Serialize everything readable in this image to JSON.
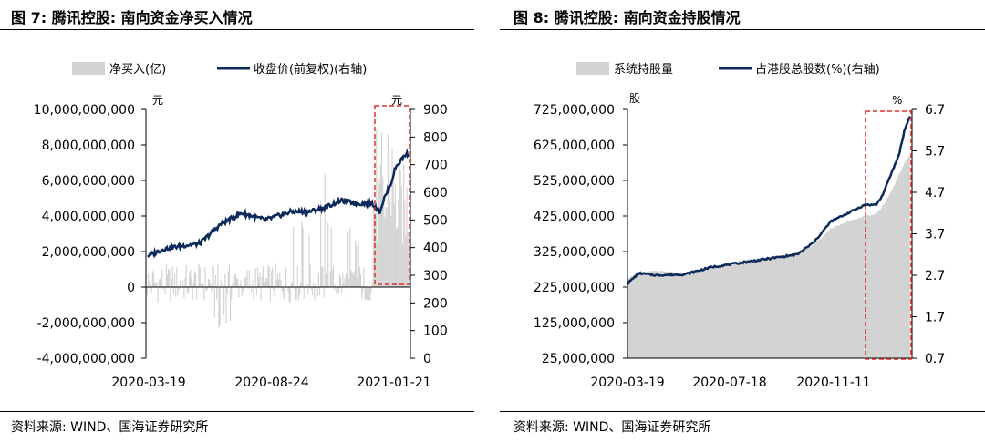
{
  "figures": [
    {
      "title_prefix": "图 ",
      "title_num": "7",
      "title_sep": ": ",
      "title_text": "腾讯控股: 南向资金净买入情况",
      "source": "资料来源: WIND、国海证券研究所"
    },
    {
      "title_prefix": "图 ",
      "title_num": "8",
      "title_sep": ": ",
      "title_text": "腾讯控股: 南向资金持股情况",
      "source": "资料来源: WIND、国海证券研究所"
    }
  ],
  "chart_data": [
    {
      "type": "bar+line",
      "title": "腾讯控股: 南向资金净买入情况",
      "legend": [
        "净买入(亿)",
        "收盘价(前复权)(右轴)"
      ],
      "left_unit": "元",
      "right_unit": "元",
      "x_tick_labels": [
        "2020-03-19",
        "2020-08-24",
        "2021-01-21"
      ],
      "ylim_left": [
        -4000000000,
        10000000000
      ],
      "ylim_right": [
        0,
        900
      ],
      "y_left_ticks": [
        "10,000,000,000",
        "8,000,000,000",
        "6,000,000,000",
        "4,000,000,000",
        "2,000,000,000",
        "0",
        "-2,000,000,000",
        "-4,000,000,000"
      ],
      "y_right_ticks": [
        "900",
        "800",
        "700",
        "600",
        "500",
        "400",
        "300",
        "200",
        "100",
        "0"
      ],
      "price_keypoints": [
        [
          0,
          370
        ],
        [
          0.06,
          395
        ],
        [
          0.12,
          405
        ],
        [
          0.2,
          415
        ],
        [
          0.28,
          485
        ],
        [
          0.36,
          525
        ],
        [
          0.45,
          500
        ],
        [
          0.55,
          530
        ],
        [
          0.62,
          530
        ],
        [
          0.68,
          545
        ],
        [
          0.74,
          570
        ],
        [
          0.8,
          560
        ],
        [
          0.86,
          560
        ],
        [
          0.89,
          530
        ],
        [
          0.905,
          575
        ],
        [
          0.93,
          625
        ],
        [
          0.95,
          690
        ],
        [
          0.97,
          715
        ],
        [
          0.985,
          735
        ],
        [
          1.0,
          740
        ]
      ],
      "net_buy_series": "净买入(亿)",
      "colors": {
        "bar": "#d3d3d3",
        "line": "#0b2a5b",
        "highlight": "#e0302d"
      }
    },
    {
      "type": "area+line",
      "title": "腾讯控股: 南向资金持股情况",
      "legend": [
        "系统持股量",
        "占港股总股数(%)(右轴)"
      ],
      "left_unit": "股",
      "right_unit": "%",
      "x_tick_labels": [
        "2020-03-19",
        "2020-07-18",
        "2020-11-11"
      ],
      "ylim_left": [
        25000000,
        725000000
      ],
      "ylim_right": [
        0.7,
        6.7
      ],
      "y_left_ticks": [
        "725,000,000",
        "625,000,000",
        "525,000,000",
        "425,000,000",
        "325,000,000",
        "225,000,000",
        "125,000,000",
        "25,000,000"
      ],
      "y_right_ticks": [
        "6.7",
        "5.7",
        "4.7",
        "3.7",
        "2.7",
        "1.7",
        "0.7"
      ],
      "holding_keypoints": [
        [
          0,
          250
        ],
        [
          0.04,
          267
        ],
        [
          0.1,
          270
        ],
        [
          0.2,
          265
        ],
        [
          0.3,
          280
        ],
        [
          0.4,
          300
        ],
        [
          0.5,
          310
        ],
        [
          0.6,
          320
        ],
        [
          0.66,
          345
        ],
        [
          0.72,
          390
        ],
        [
          0.78,
          410
        ],
        [
          0.84,
          425
        ],
        [
          0.88,
          430
        ],
        [
          0.9,
          450
        ],
        [
          0.93,
          490
        ],
        [
          0.96,
          540
        ],
        [
          0.98,
          575
        ],
        [
          1.0,
          595
        ]
      ],
      "share_pct_keypoints": [
        [
          0,
          2.5
        ],
        [
          0.04,
          2.75
        ],
        [
          0.1,
          2.7
        ],
        [
          0.2,
          2.72
        ],
        [
          0.3,
          2.9
        ],
        [
          0.4,
          3.0
        ],
        [
          0.5,
          3.1
        ],
        [
          0.6,
          3.2
        ],
        [
          0.66,
          3.5
        ],
        [
          0.72,
          4.0
        ],
        [
          0.78,
          4.2
        ],
        [
          0.84,
          4.4
        ],
        [
          0.88,
          4.4
        ],
        [
          0.9,
          4.6
        ],
        [
          0.93,
          5.1
        ],
        [
          0.96,
          5.6
        ],
        [
          0.98,
          6.2
        ],
        [
          1.0,
          6.55
        ]
      ],
      "colors": {
        "area": "#d3d3d3",
        "line": "#0b2a5b",
        "highlight": "#e0302d"
      }
    }
  ]
}
